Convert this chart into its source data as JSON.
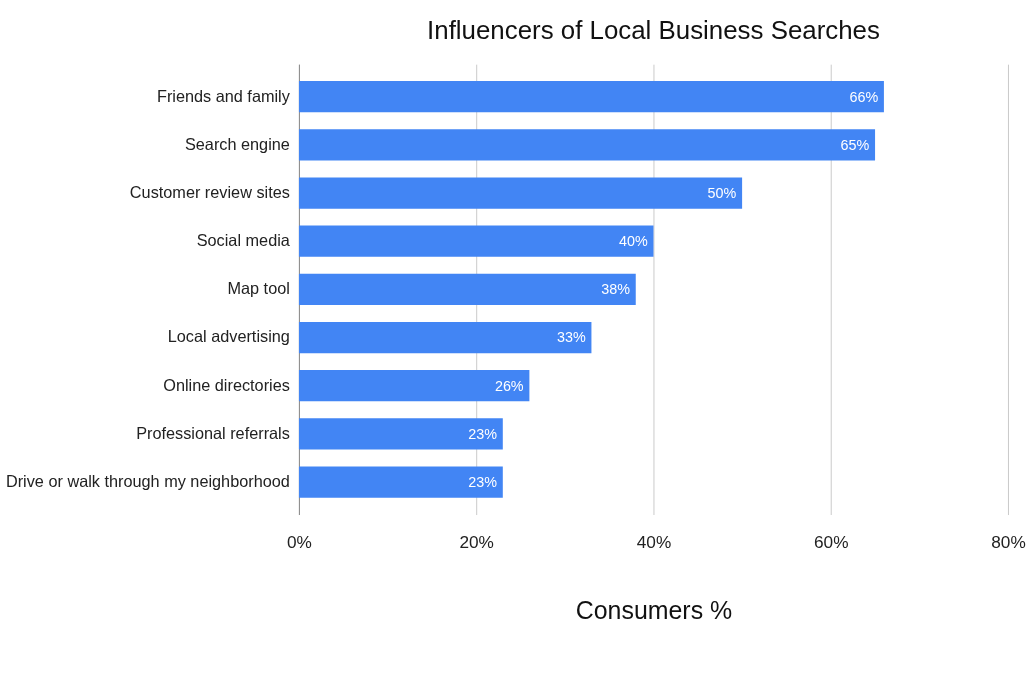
{
  "chart_data": {
    "type": "bar",
    "orientation": "horizontal",
    "title": "Influencers of Local Business Searches",
    "xlabel": "Consumers %",
    "categories": [
      "Friends and family",
      "Search engine",
      "Customer review sites",
      "Social media",
      "Map tool",
      "Local advertising",
      "Online directories",
      "Professional referrals",
      "Drive or walk through my neighborhood"
    ],
    "values": [
      66,
      65,
      50,
      40,
      38,
      33,
      26,
      23,
      23
    ],
    "value_labels": [
      "66%",
      "65%",
      "50%",
      "40%",
      "38%",
      "33%",
      "26%",
      "23%",
      "23%"
    ],
    "color": "#4285f4",
    "xlim": [
      0,
      80
    ],
    "xticks": [
      {
        "value": 0,
        "label": "0%"
      },
      {
        "value": 20,
        "label": "20%"
      },
      {
        "value": 40,
        "label": "40%"
      },
      {
        "value": 60,
        "label": "60%"
      },
      {
        "value": 80,
        "label": "80%"
      }
    ],
    "grid": "x"
  }
}
